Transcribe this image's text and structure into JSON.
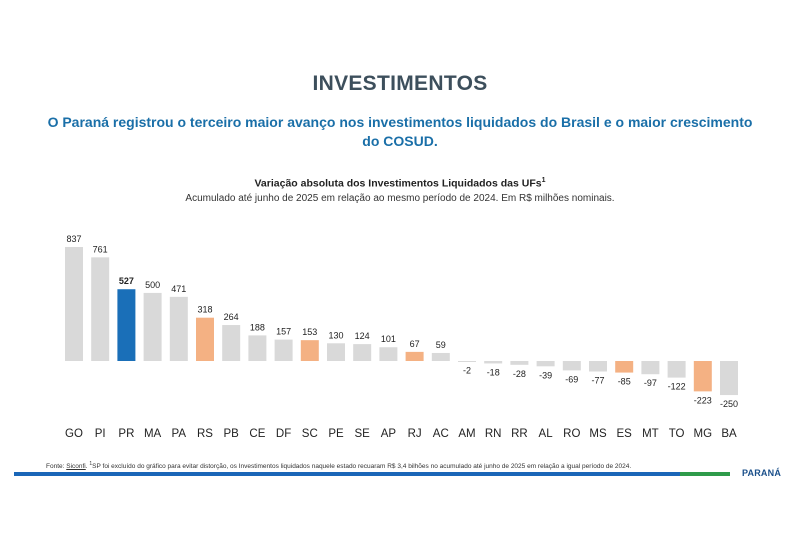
{
  "heading": "INVESTIMENTOS",
  "subheading": "O Paraná registrou o terceiro maior avanço nos investimentos liquidados do Brasil e o maior crescimento do COSUD.",
  "chart_data": {
    "type": "bar",
    "title": "Variação absoluta dos Investimentos Liquidados das UFs",
    "title_superscript": "1",
    "subtitle": "Acumulado até junho de 2025 em relação ao mesmo período de 2024. Em R$ milhões nominais.",
    "categories": [
      "GO",
      "PI",
      "PR",
      "MA",
      "PA",
      "RS",
      "PB",
      "CE",
      "DF",
      "SC",
      "PE",
      "SE",
      "AP",
      "RJ",
      "AC",
      "AM",
      "RN",
      "RR",
      "AL",
      "RO",
      "MS",
      "ES",
      "MT",
      "TO",
      "MG",
      "BA"
    ],
    "values": [
      837,
      761,
      527,
      500,
      471,
      318,
      264,
      188,
      157,
      153,
      130,
      124,
      101,
      67,
      59,
      -2,
      -18,
      -28,
      -39,
      -69,
      -77,
      -85,
      -97,
      -122,
      -223,
      -250
    ],
    "highlight": {
      "PR": "primary",
      "RS": "cosud",
      "SC": "cosud",
      "RJ": "cosud",
      "ES": "cosud",
      "MG": "cosud"
    },
    "ylim": [
      -250,
      837
    ],
    "grid": false,
    "legend": "none"
  },
  "colors": {
    "default_bar": "#d9d9d9",
    "primary_bar": "#1a6fb8",
    "cosud_bar": "#f4b183",
    "label": "#222222"
  },
  "footnote": {
    "prefix": "Fonte: ",
    "source": "Siconfi",
    "marker": "1",
    "text": "SP foi excluído do gráfico para evitar distorção, os Investimentos liquidados naquele estado recuaram R$ 3,4 bilhões no acumulado até junho de 2025 em relação a igual período de 2024."
  },
  "logo": {
    "text": "PARANÁ"
  }
}
